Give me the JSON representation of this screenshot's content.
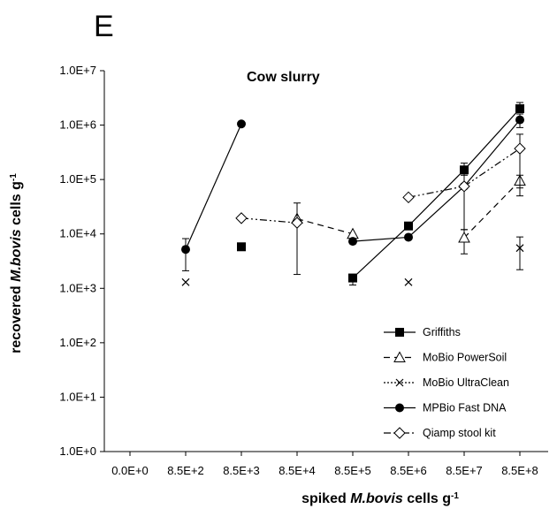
{
  "panel_label": "E",
  "chart_data": {
    "type": "line",
    "title": "Cow slurry",
    "xlabel_parts": [
      "spiked ",
      "M.bovis",
      " cells g",
      "-1"
    ],
    "ylabel_parts": [
      "recovered ",
      "M.bovis",
      " cells g",
      "-1"
    ],
    "x_ticks": [
      "0.0E+0",
      "8.5E+2",
      "8.5E+3",
      "8.5E+4",
      "8.5E+5",
      "8.5E+6",
      "8.5E+7",
      "8.5E+8"
    ],
    "y_ticks": [
      "1.0E+0",
      "1.0E+1",
      "1.0E+2",
      "1.0E+3",
      "1.0E+4",
      "1.0E+5",
      "1.0E+6",
      "1.0E+7"
    ],
    "y_scale": "log",
    "ylim": [
      1,
      10000000
    ],
    "grid": false,
    "legend_position": "bottom-right",
    "series": [
      {
        "name": "Griffiths",
        "marker": "square-filled",
        "dash": "solid",
        "points": [
          {
            "x": "8.5E+3",
            "y": 5800
          },
          {
            "x": "8.5E+5",
            "y": 1550,
            "err_low": 1150,
            "err_high": 1650
          },
          {
            "x": "8.5E+6",
            "y": 14000,
            "err_low": 12500,
            "err_high": 15500
          },
          {
            "x": "8.5E+7",
            "y": 150000,
            "err_low": 120000,
            "err_high": 200000
          },
          {
            "x": "8.5E+8",
            "y": 2000000,
            "err_low": 1700000,
            "err_high": 2600000
          }
        ],
        "segments": [
          [
            "8.5E+5",
            "8.5E+6"
          ],
          [
            "8.5E+6",
            "8.5E+7"
          ],
          [
            "8.5E+7",
            "8.5E+8"
          ]
        ]
      },
      {
        "name": "MoBio PowerSoil",
        "marker": "triangle-open",
        "dash": "dashed",
        "points": [
          {
            "x": "8.5E+4",
            "y": 19000
          },
          {
            "x": "8.5E+5",
            "y": 10000
          },
          {
            "x": "8.5E+7",
            "y": 8500,
            "err_low": 4300,
            "err_high": 12000
          },
          {
            "x": "8.5E+8",
            "y": 95000,
            "err_low": 50000,
            "err_high": 120000
          }
        ],
        "segments": [
          [
            "8.5E+4",
            "8.5E+5"
          ],
          [
            "8.5E+7",
            "8.5E+8"
          ]
        ]
      },
      {
        "name": "MoBio UltraClean",
        "marker": "x",
        "dash": "dotted",
        "points": [
          {
            "x": "8.5E+2",
            "y": 1300
          },
          {
            "x": "8.5E+6",
            "y": 1300
          },
          {
            "x": "8.5E+8",
            "y": 5500,
            "err_low": 2200,
            "err_high": 8800
          }
        ],
        "segments": []
      },
      {
        "name": "MPBio Fast DNA",
        "marker": "circle-filled",
        "dash": "solid",
        "points": [
          {
            "x": "8.5E+2",
            "y": 5200,
            "err_low": 2100,
            "err_high": 8200
          },
          {
            "x": "8.5E+3",
            "y": 1050000
          },
          {
            "x": "8.5E+5",
            "y": 7300
          },
          {
            "x": "8.5E+6",
            "y": 8700
          },
          {
            "x": "8.5E+7",
            "y": 75000
          },
          {
            "x": "8.5E+8",
            "y": 1250000,
            "err_low": 900000,
            "err_high": 1600000
          }
        ],
        "segments": [
          [
            "8.5E+2",
            "8.5E+3"
          ],
          [
            "8.5E+5",
            "8.5E+6"
          ],
          [
            "8.5E+6",
            "8.5E+7"
          ],
          [
            "8.5E+7",
            "8.5E+8"
          ]
        ]
      },
      {
        "name": "Qiamp stool kit",
        "marker": "diamond-open",
        "dash": "dashdotdot",
        "points": [
          {
            "x": "8.5E+3",
            "y": 19500
          },
          {
            "x": "8.5E+4",
            "y": 16000,
            "err_low": 1800,
            "err_high": 37000
          },
          {
            "x": "8.5E+6",
            "y": 47000
          },
          {
            "x": "8.5E+7",
            "y": 75000,
            "err_low": 12000,
            "err_high": 155000
          },
          {
            "x": "8.5E+8",
            "y": 370000,
            "err_low": 70000,
            "err_high": 680000
          }
        ],
        "segments": [
          [
            "8.5E+3",
            "8.5E+4"
          ],
          [
            "8.5E+6",
            "8.5E+7"
          ],
          [
            "8.5E+7",
            "8.5E+8"
          ]
        ]
      }
    ]
  }
}
